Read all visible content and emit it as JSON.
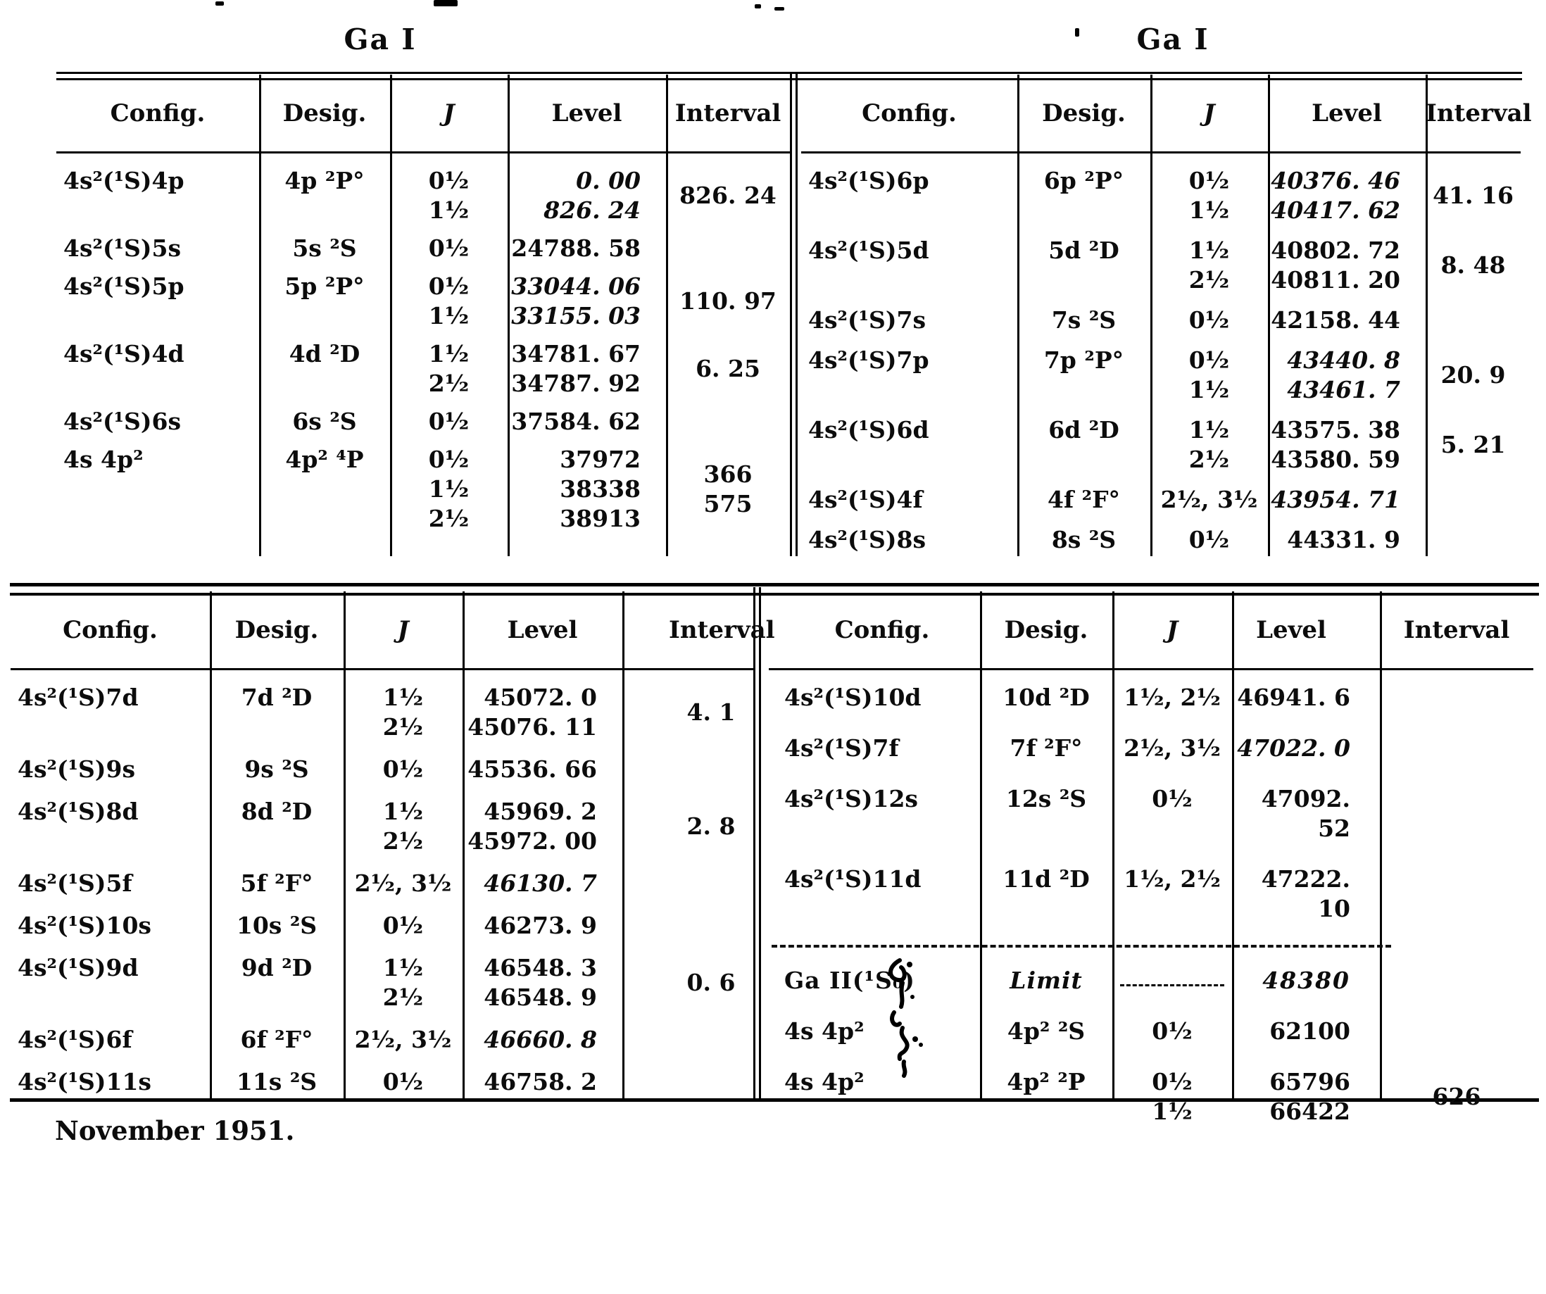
{
  "titles": {
    "left": "Ga I",
    "right": "Ga I"
  },
  "footer": "November 1951.",
  "headers": [
    "Config.",
    "Desig.",
    "J",
    "Level",
    "Interval"
  ],
  "ink_color": "#0c0c0c",
  "paper_color": "#ffffff",
  "tables": [
    {
      "id": "top-left",
      "rows": [
        {
          "config": "4s²(¹S)4p",
          "desig": "4p ²P°",
          "j": [
            "0½",
            "1½"
          ],
          "levels": [
            {
              "v": "0. 00",
              "it": true
            },
            {
              "v": "826. 24",
              "it": true
            }
          ],
          "interval": [
            "826. 24"
          ]
        },
        {
          "config": "4s²(¹S)5s",
          "desig": "5s ²S",
          "j": [
            "0½"
          ],
          "levels": [
            {
              "v": "24788. 58"
            }
          ],
          "interval": []
        },
        {
          "config": "4s²(¹S)5p",
          "desig": "5p ²P°",
          "j": [
            "0½",
            "1½"
          ],
          "levels": [
            {
              "v": "33044. 06",
              "it": true
            },
            {
              "v": "33155. 03",
              "it": true
            }
          ],
          "interval": [
            "110. 97"
          ]
        },
        {
          "config": "4s²(¹S)4d",
          "desig": "4d ²D",
          "j": [
            "1½",
            "2½"
          ],
          "levels": [
            {
              "v": "34781. 67"
            },
            {
              "v": "34787. 92"
            }
          ],
          "interval": [
            "6. 25"
          ]
        },
        {
          "config": "4s²(¹S)6s",
          "desig": "6s ²S",
          "j": [
            "0½"
          ],
          "levels": [
            {
              "v": "37584. 62"
            }
          ],
          "interval": []
        },
        {
          "config": "4s 4p²",
          "desig": "4p² ⁴P",
          "j": [
            "0½",
            "1½",
            "2½"
          ],
          "levels": [
            {
              "v": "37972"
            },
            {
              "v": "38338"
            },
            {
              "v": "38913"
            }
          ],
          "interval": [
            "366",
            "575"
          ]
        }
      ]
    },
    {
      "id": "top-right",
      "rows": [
        {
          "config": "4s²(¹S)6p",
          "desig": "6p ²P°",
          "j": [
            "0½",
            "1½"
          ],
          "levels": [
            {
              "v": "40376. 46",
              "it": true
            },
            {
              "v": "40417. 62",
              "it": true
            }
          ],
          "interval": [
            "41. 16"
          ]
        },
        {
          "config": "4s²(¹S)5d",
          "desig": "5d ²D",
          "j": [
            "1½",
            "2½"
          ],
          "levels": [
            {
              "v": "40802. 72"
            },
            {
              "v": "40811. 20"
            }
          ],
          "interval": [
            "8. 48"
          ]
        },
        {
          "config": "4s²(¹S)7s",
          "desig": "7s ²S",
          "j": [
            "0½"
          ],
          "levels": [
            {
              "v": "42158. 44"
            }
          ],
          "interval": []
        },
        {
          "config": "4s²(¹S)7p",
          "desig": "7p ²P°",
          "j": [
            "0½",
            "1½"
          ],
          "levels": [
            {
              "v": "43440. 8",
              "it": true
            },
            {
              "v": "43461. 7",
              "it": true
            }
          ],
          "interval": [
            "20. 9"
          ]
        },
        {
          "config": "4s²(¹S)6d",
          "desig": "6d ²D",
          "j": [
            "1½",
            "2½"
          ],
          "levels": [
            {
              "v": "43575. 38"
            },
            {
              "v": "43580. 59"
            }
          ],
          "interval": [
            "5. 21"
          ]
        },
        {
          "config": "4s²(¹S)4f",
          "desig": "4f ²F°",
          "j": [
            "2½, 3½"
          ],
          "levels": [
            {
              "v": "43954. 71",
              "it": true
            }
          ],
          "interval": []
        },
        {
          "config": "4s²(¹S)8s",
          "desig": "8s ²S",
          "j": [
            "0½"
          ],
          "levels": [
            {
              "v": "44331. 9"
            }
          ],
          "interval": []
        }
      ]
    },
    {
      "id": "bottom-left",
      "rows": [
        {
          "config": "4s²(¹S)7d",
          "desig": "7d ²D",
          "j": [
            "1½",
            "2½"
          ],
          "levels": [
            {
              "v": "45072. 0"
            },
            {
              "v": "45076. 11"
            }
          ],
          "interval": [
            "4. 1"
          ]
        },
        {
          "config": "4s²(¹S)9s",
          "desig": "9s ²S",
          "j": [
            "0½"
          ],
          "levels": [
            {
              "v": "45536. 66"
            }
          ],
          "interval": []
        },
        {
          "config": "4s²(¹S)8d",
          "desig": "8d ²D",
          "j": [
            "1½",
            "2½"
          ],
          "levels": [
            {
              "v": "45969. 2"
            },
            {
              "v": "45972. 00"
            }
          ],
          "interval": [
            "2. 8"
          ]
        },
        {
          "config": "4s²(¹S)5f",
          "desig": "5f ²F°",
          "j": [
            "2½, 3½"
          ],
          "levels": [
            {
              "v": "46130. 7",
              "it": true
            }
          ],
          "interval": []
        },
        {
          "config": "4s²(¹S)10s",
          "desig": "10s ²S",
          "j": [
            "0½"
          ],
          "levels": [
            {
              "v": "46273. 9"
            }
          ],
          "interval": []
        },
        {
          "config": "4s²(¹S)9d",
          "desig": "9d ²D",
          "j": [
            "1½",
            "2½"
          ],
          "levels": [
            {
              "v": "46548. 3"
            },
            {
              "v": "46548. 9"
            }
          ],
          "interval": [
            "0. 6"
          ]
        },
        {
          "config": "4s²(¹S)6f",
          "desig": "6f ²F°",
          "j": [
            "2½, 3½"
          ],
          "levels": [
            {
              "v": "46660. 8",
              "it": true
            }
          ],
          "interval": []
        },
        {
          "config": "4s²(¹S)11s",
          "desig": "11s ²S",
          "j": [
            "0½"
          ],
          "levels": [
            {
              "v": "46758. 2"
            }
          ],
          "interval": []
        }
      ]
    },
    {
      "id": "bottom-right",
      "rows": [
        {
          "config": "4s²(¹S)10d",
          "desig": "10d ²D",
          "j": [
            "1½, 2½"
          ],
          "levels": [
            {
              "v": "46941. 6"
            }
          ],
          "interval": []
        },
        {
          "config": "4s²(¹S)7f",
          "desig": "7f ²F°",
          "j": [
            "2½, 3½"
          ],
          "levels": [
            {
              "v": "47022. 0",
              "it": true
            }
          ],
          "interval": []
        },
        {
          "config": "4s²(¹S)12s",
          "desig": "12s ²S",
          "j": [
            "0½"
          ],
          "levels": [
            {
              "v": "47092. 52"
            }
          ],
          "interval": []
        },
        {
          "config": "4s²(¹S)11d",
          "desig": "11d ²D",
          "j": [
            "1½, 2½"
          ],
          "levels": [
            {
              "v": "47222. 10"
            }
          ],
          "interval": []
        },
        {
          "type": "dashed"
        },
        {
          "type": "limit",
          "config": "Ga II(¹S₀)",
          "desig": "Limit",
          "level": "48380"
        },
        {
          "config": "4s 4p²",
          "desig": "4p² ²S",
          "j": [
            "0½"
          ],
          "levels": [
            {
              "v": "62100"
            }
          ],
          "interval": []
        },
        {
          "config": "4s 4p²",
          "desig": "4p² ²P",
          "j": [
            "0½",
            "1½"
          ],
          "levels": [
            {
              "v": "65796"
            },
            {
              "v": "66422"
            }
          ],
          "interval": [
            "626"
          ]
        }
      ]
    }
  ]
}
